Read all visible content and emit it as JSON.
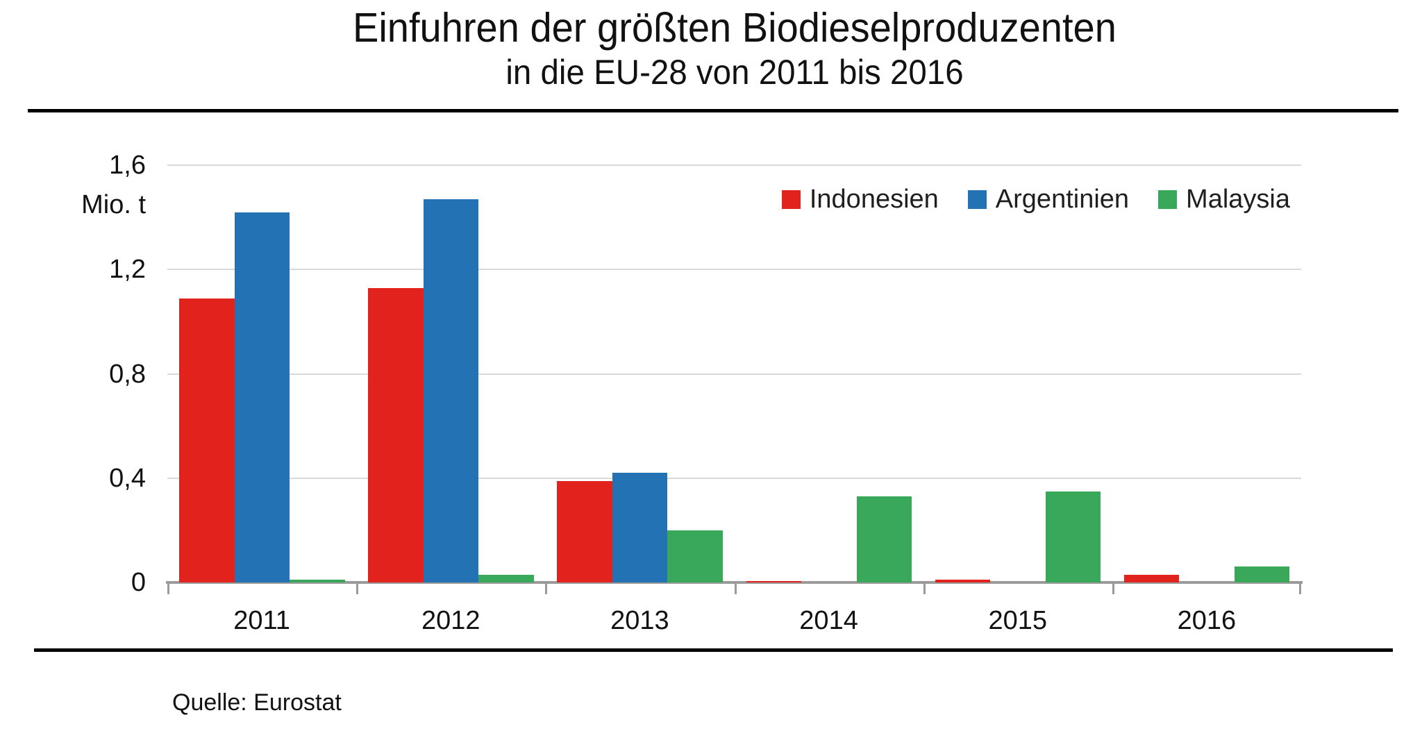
{
  "title": {
    "line1": "Einfuhren der größten Biodieselproduzenten",
    "line2": "in die EU-28 von 2011 bis 2016"
  },
  "y_axis": {
    "unit_label": "Mio. t",
    "tick_labels": [
      "1,6",
      "1,2",
      "0,8",
      "0,4",
      "0"
    ]
  },
  "source_note": "Quelle: Eurostat",
  "colors": {
    "indonesien": "#e2231d",
    "argentinien": "#2272b4",
    "malaysia": "#3aa85a",
    "gridline": "#d9d9d9",
    "axis": "#9b9b9b",
    "text": "#111111"
  },
  "chart_data": {
    "type": "bar",
    "title": "Einfuhren der größten Biodieselproduzenten in die EU-28 von 2011 bis 2016",
    "categories": [
      "2011",
      "2012",
      "2013",
      "2014",
      "2015",
      "2016"
    ],
    "series": [
      {
        "name": "Indonesien",
        "color": "#e2231d",
        "values": [
          1.09,
          1.13,
          0.39,
          0.005,
          0.01,
          0.03
        ]
      },
      {
        "name": "Argentinien",
        "color": "#2272b4",
        "values": [
          1.42,
          1.47,
          0.42,
          0,
          0,
          0
        ]
      },
      {
        "name": "Malaysia",
        "color": "#3aa85a",
        "values": [
          0.01,
          0.03,
          0.2,
          0.33,
          0.35,
          0.06
        ]
      }
    ],
    "xlabel": "",
    "ylabel": "Mio. t",
    "ylim": [
      0,
      1.6
    ],
    "ytick_step": 0.4,
    "grid": true,
    "legend_position": "top-right",
    "source": "Quelle: Eurostat"
  }
}
